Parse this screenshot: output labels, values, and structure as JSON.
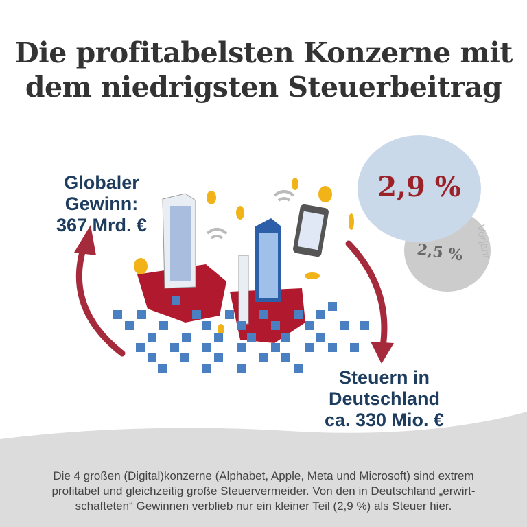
{
  "title": {
    "line1": "Die profitabelsten Konzerne mit",
    "line2": "dem niedrigsten Steuerbeitrag"
  },
  "gewinn": {
    "line1": "Globaler",
    "line2": "Gewinn:",
    "line3": "367 Mrd. €"
  },
  "steuern": {
    "line1": "Steuern in",
    "line2": "Deutschland",
    "line3": "ca. 330 Mio. €"
  },
  "rate": {
    "current": "2,9 %",
    "previous": "2,5 %",
    "previous_label": "Vorjahr"
  },
  "footer": {
    "line1": "Die 4 großen (Digital)konzerne (Alphabet, Apple, Meta und Microsoft) sind extrem",
    "line2": "profitabel und gleichzeitig große Steuervermeider. Von den in Deutschland „erwirt-",
    "line3": "schafteten“ Gewinnen verblieb nur ein kleiner Teil (2,9 %) als Steuer hier."
  },
  "colors": {
    "title": "#333333",
    "label": "#1d3c5e",
    "arrow": "#a52a3c",
    "current_circle": "#c9d9ea",
    "previous_circle": "#cccccc",
    "footer_bg": "#dcdcdc",
    "pixel": "#4a7fc1",
    "coin": "#f2b319"
  }
}
